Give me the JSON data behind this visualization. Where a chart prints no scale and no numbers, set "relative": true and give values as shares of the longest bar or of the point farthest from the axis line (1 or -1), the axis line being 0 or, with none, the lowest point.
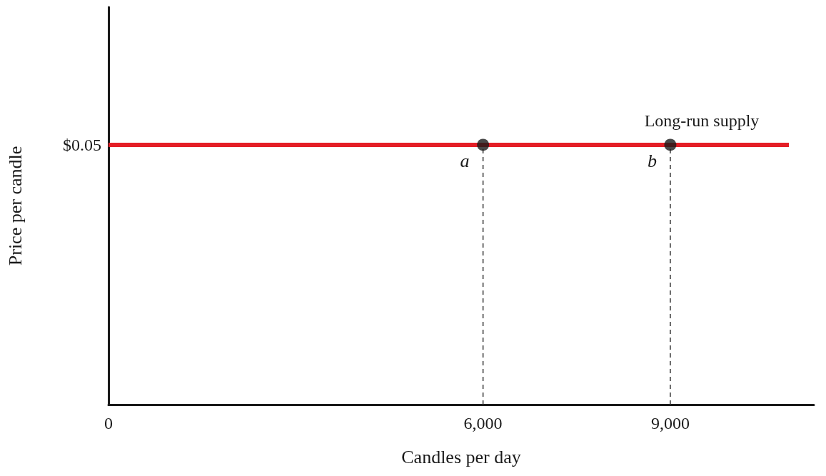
{
  "chart_data": {
    "type": "line",
    "xlabel": "Candles per day",
    "ylabel": "Price per candle",
    "xlim": [
      0,
      11300
    ],
    "xticks": [
      0,
      {
        "value": 6000,
        "label": "6,000"
      },
      {
        "value": 9000,
        "label": "9,000"
      }
    ],
    "relative": true,
    "series": [
      {
        "name": "Long-run supply",
        "color": "#e41e26",
        "x": [
          0,
          10900
        ],
        "values": [
          1,
          1
        ],
        "marker": "none",
        "line_style": "solid"
      },
      {
        "color": "#333333",
        "x": [
          6000,
          6000
        ],
        "values": [
          0,
          1
        ],
        "marker": "none",
        "line_style": "dashed"
      },
      {
        "color": "#333333",
        "x": [
          9000,
          9000
        ],
        "values": [
          0,
          1
        ],
        "marker": "none",
        "line_style": "dashed"
      },
      {
        "type": "scatter",
        "color": "#1a1a1a",
        "x": [
          6000,
          9000
        ],
        "values": [
          1,
          1
        ],
        "marker": "circle"
      }
    ],
    "annotations": [
      {
        "text": "a",
        "x": 6000,
        "y": 1
      },
      {
        "text": "b",
        "x": 9000,
        "y": 1
      },
      {
        "text": "$0.05",
        "x": 0,
        "y": 1
      }
    ],
    "grid": false,
    "legend": false
  }
}
